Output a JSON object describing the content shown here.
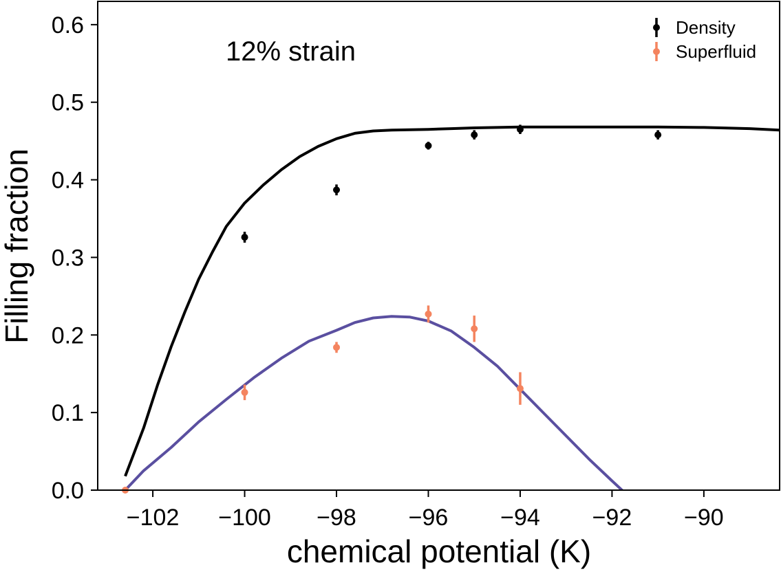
{
  "chart_data": {
    "type": "scatter",
    "title": "",
    "annotation": "12% strain",
    "xlabel": "chemical potential (K)",
    "ylabel": "Filling fraction",
    "xlim": [
      -103.2,
      -88.35
    ],
    "ylim": [
      0.0,
      0.63
    ],
    "xticks": [
      -102,
      -100,
      -98,
      -96,
      -94,
      -92,
      -90
    ],
    "xtick_labels": [
      "−102",
      "−100",
      "−98",
      "−96",
      "−94",
      "−92",
      "−90"
    ],
    "yticks": [
      0.0,
      0.1,
      0.2,
      0.3,
      0.4,
      0.5,
      0.6
    ],
    "ytick_labels": [
      "0.0",
      "0.1",
      "0.2",
      "0.3",
      "0.4",
      "0.5",
      "0.6"
    ],
    "grid": false,
    "legend_position": "top-right",
    "series": [
      {
        "name": "Density",
        "kind": "errorbar",
        "color": "#000000",
        "x": [
          -100,
          -98,
          -96,
          -95,
          -94,
          -91
        ],
        "y": [
          0.326,
          0.387,
          0.444,
          0.458,
          0.465,
          0.458
        ],
        "yerr": [
          0.007,
          0.007,
          0.005,
          0.006,
          0.006,
          0.006
        ]
      },
      {
        "name": "Superfluid",
        "kind": "errorbar",
        "color": "#f4845f",
        "x": [
          -102.6,
          -100,
          -98,
          -96,
          -95,
          -94
        ],
        "y": [
          0.0,
          0.126,
          0.184,
          0.227,
          0.208,
          0.131
        ],
        "yerr": [
          0.002,
          0.01,
          0.007,
          0.011,
          0.017,
          0.021
        ]
      }
    ],
    "fit_curves": [
      {
        "color": "#000000",
        "x": [
          -102.6,
          -102.2,
          -101.9,
          -101.6,
          -101.3,
          -101.0,
          -100.7,
          -100.4,
          -100.0,
          -99.6,
          -99.2,
          -98.8,
          -98.4,
          -98.0,
          -97.6,
          -97.2,
          -96.8,
          -96.4,
          -96.0,
          -95.5,
          -95.0,
          -94.5,
          -94.0,
          -93.0,
          -92.0,
          -91.0,
          -90.0,
          -89.0,
          -88.35
        ],
        "y": [
          0.018,
          0.08,
          0.135,
          0.185,
          0.23,
          0.272,
          0.307,
          0.34,
          0.37,
          0.393,
          0.413,
          0.43,
          0.443,
          0.453,
          0.46,
          0.463,
          0.464,
          0.4645,
          0.465,
          0.466,
          0.467,
          0.4675,
          0.468,
          0.468,
          0.468,
          0.468,
          0.4675,
          0.466,
          0.464
        ]
      },
      {
        "color": "#5a4fa0",
        "x": [
          -102.6,
          -102.2,
          -101.6,
          -101.0,
          -100.4,
          -99.8,
          -99.2,
          -98.6,
          -98.0,
          -97.6,
          -97.2,
          -96.8,
          -96.4,
          -96.0,
          -95.5,
          -95.0,
          -94.5,
          -94.0,
          -93.5,
          -93.0,
          -92.5,
          -92.0,
          -91.6
        ],
        "y": [
          0.0,
          0.025,
          0.055,
          0.088,
          0.117,
          0.145,
          0.17,
          0.192,
          0.206,
          0.216,
          0.222,
          0.224,
          0.223,
          0.218,
          0.205,
          0.184,
          0.16,
          0.13,
          0.1,
          0.07,
          0.04,
          0.012,
          -0.01
        ]
      }
    ]
  }
}
